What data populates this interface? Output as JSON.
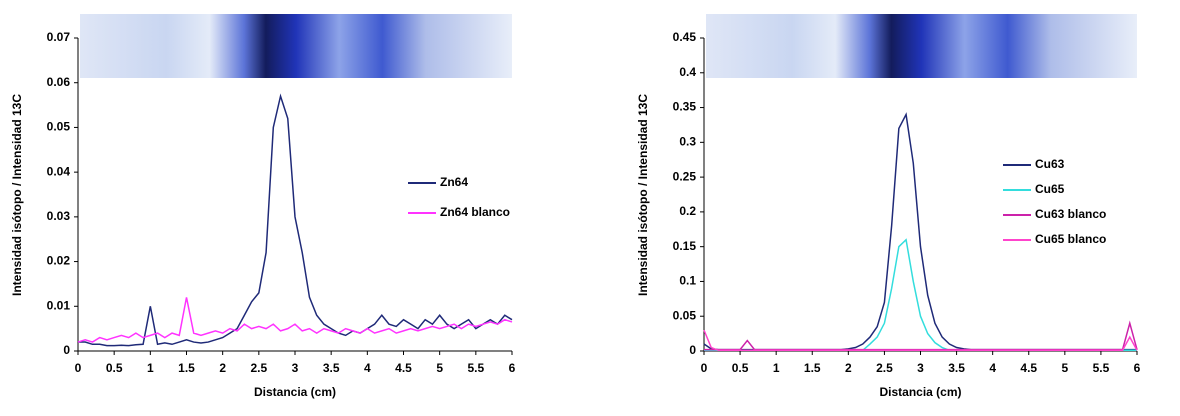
{
  "chart_data": [
    {
      "type": "line",
      "ylabel": "Intensidad isótopo / Intensidad 13C",
      "xlabel": "Distancia (cm)",
      "x": [
        0,
        0.1,
        0.2,
        0.3,
        0.4,
        0.5,
        0.6,
        0.7,
        0.8,
        0.9,
        1,
        1.1,
        1.2,
        1.3,
        1.4,
        1.5,
        1.6,
        1.7,
        1.8,
        1.9,
        2,
        2.1,
        2.2,
        2.3,
        2.4,
        2.5,
        2.6,
        2.7,
        2.8,
        2.9,
        3,
        3.1,
        3.2,
        3.3,
        3.4,
        3.5,
        3.6,
        3.7,
        3.8,
        3.9,
        4,
        4.1,
        4.2,
        4.3,
        4.4,
        4.5,
        4.6,
        4.7,
        4.8,
        4.9,
        5,
        5.1,
        5.2,
        5.3,
        5.4,
        5.5,
        5.6,
        5.7,
        5.8,
        5.9,
        6
      ],
      "xlim": [
        0,
        6
      ],
      "xticks": [
        0,
        0.5,
        1,
        1.5,
        2,
        2.5,
        3,
        3.5,
        4,
        4.5,
        5,
        5.5,
        6
      ],
      "ylim": [
        0,
        0.07
      ],
      "yticks": [
        0,
        0.01,
        0.02,
        0.03,
        0.04,
        0.05,
        0.06,
        0.07
      ],
      "legend": "right",
      "series": [
        {
          "name": "Zn64",
          "color": "#1f2a78",
          "values": [
            0.002,
            0.002,
            0.0015,
            0.0015,
            0.0012,
            0.0012,
            0.0013,
            0.0012,
            0.0014,
            0.0015,
            0.01,
            0.0015,
            0.0018,
            0.0015,
            0.002,
            0.0025,
            0.002,
            0.0018,
            0.002,
            0.0025,
            0.003,
            0.004,
            0.005,
            0.008,
            0.011,
            0.013,
            0.022,
            0.05,
            0.057,
            0.052,
            0.03,
            0.022,
            0.012,
            0.008,
            0.006,
            0.005,
            0.004,
            0.0035,
            0.0045,
            0.004,
            0.005,
            0.006,
            0.008,
            0.006,
            0.0055,
            0.007,
            0.006,
            0.005,
            0.007,
            0.006,
            0.008,
            0.006,
            0.005,
            0.006,
            0.007,
            0.005,
            0.006,
            0.007,
            0.006,
            0.008,
            0.007
          ]
        },
        {
          "name": "Zn64 blanco",
          "color": "#ff33ff",
          "values": [
            0.002,
            0.0025,
            0.002,
            0.003,
            0.0025,
            0.003,
            0.0035,
            0.003,
            0.004,
            0.003,
            0.0035,
            0.004,
            0.003,
            0.004,
            0.0035,
            0.012,
            0.004,
            0.0035,
            0.004,
            0.0045,
            0.004,
            0.005,
            0.0045,
            0.006,
            0.005,
            0.0055,
            0.005,
            0.006,
            0.0045,
            0.005,
            0.006,
            0.0045,
            0.005,
            0.004,
            0.005,
            0.0045,
            0.004,
            0.005,
            0.0045,
            0.004,
            0.005,
            0.004,
            0.0045,
            0.005,
            0.004,
            0.0045,
            0.005,
            0.0045,
            0.005,
            0.0055,
            0.005,
            0.0055,
            0.006,
            0.005,
            0.006,
            0.0055,
            0.006,
            0.0065,
            0.006,
            0.007,
            0.0065
          ]
        }
      ]
    },
    {
      "type": "line",
      "ylabel": "Intensidad isótopo / Intensidad 13C",
      "xlabel": "Distancia (cm)",
      "x": [
        0,
        0.1,
        0.2,
        0.3,
        0.4,
        0.5,
        0.6,
        0.7,
        0.8,
        0.9,
        1,
        1.1,
        1.2,
        1.3,
        1.4,
        1.5,
        1.6,
        1.7,
        1.8,
        1.9,
        2,
        2.1,
        2.2,
        2.3,
        2.4,
        2.5,
        2.6,
        2.7,
        2.8,
        2.9,
        3,
        3.1,
        3.2,
        3.3,
        3.4,
        3.5,
        3.6,
        3.7,
        3.8,
        3.9,
        4,
        4.1,
        4.2,
        4.3,
        4.4,
        4.5,
        4.6,
        4.7,
        4.8,
        4.9,
        5,
        5.1,
        5.2,
        5.3,
        5.4,
        5.5,
        5.6,
        5.7,
        5.8,
        5.9,
        6
      ],
      "xlim": [
        0,
        6
      ],
      "xticks": [
        0,
        0.5,
        1,
        1.5,
        2,
        2.5,
        3,
        3.5,
        4,
        4.5,
        5,
        5.5,
        6
      ],
      "ylim": [
        0,
        0.45
      ],
      "yticks": [
        0,
        0.05,
        0.1,
        0.15,
        0.2,
        0.25,
        0.3,
        0.35,
        0.4,
        0.45
      ],
      "legend": "right",
      "series": [
        {
          "name": "Cu63",
          "color": "#1f2a78",
          "values": [
            0.01,
            0.003,
            0.002,
            0.002,
            0.002,
            0.002,
            0.002,
            0.002,
            0.002,
            0.002,
            0.002,
            0.002,
            0.002,
            0.002,
            0.002,
            0.002,
            0.002,
            0.002,
            0.002,
            0.002,
            0.003,
            0.005,
            0.01,
            0.02,
            0.035,
            0.07,
            0.18,
            0.32,
            0.34,
            0.27,
            0.15,
            0.08,
            0.04,
            0.02,
            0.01,
            0.005,
            0.003,
            0.002,
            0.002,
            0.002,
            0.002,
            0.002,
            0.002,
            0.002,
            0.002,
            0.002,
            0.002,
            0.002,
            0.002,
            0.002,
            0.002,
            0.002,
            0.002,
            0.002,
            0.002,
            0.002,
            0.002,
            0.002,
            0.002,
            0.002,
            0.002
          ]
        },
        {
          "name": "Cu65",
          "color": "#33dddd",
          "values": [
            0.001,
            0.001,
            0.001,
            0.001,
            0.001,
            0.001,
            0.001,
            0.001,
            0.001,
            0.001,
            0.001,
            0.001,
            0.001,
            0.001,
            0.001,
            0.001,
            0.001,
            0.001,
            0.001,
            0.001,
            0.001,
            0.001,
            0.001,
            0.01,
            0.02,
            0.04,
            0.09,
            0.15,
            0.16,
            0.1,
            0.05,
            0.025,
            0.012,
            0.005,
            0.001,
            0.001,
            0.001,
            0.001,
            0.001,
            0.001,
            0.001,
            0.001,
            0.001,
            0.001,
            0.001,
            0.001,
            0.001,
            0.001,
            0.001,
            0.001,
            0.001,
            0.001,
            0.001,
            0.001,
            0.001,
            0.001,
            0.001,
            0.001,
            0.001,
            0.001,
            0.001
          ]
        },
        {
          "name": "Cu63 blanco",
          "color": "#cc22aa",
          "values": [
            0.002,
            0.002,
            0.002,
            0.002,
            0.002,
            0.002,
            0.015,
            0.002,
            0.002,
            0.002,
            0.002,
            0.002,
            0.002,
            0.002,
            0.002,
            0.002,
            0.002,
            0.002,
            0.002,
            0.002,
            0.002,
            0.002,
            0.002,
            0.002,
            0.002,
            0.002,
            0.002,
            0.002,
            0.002,
            0.002,
            0.002,
            0.002,
            0.002,
            0.002,
            0.002,
            0.002,
            0.002,
            0.002,
            0.002,
            0.002,
            0.002,
            0.002,
            0.002,
            0.002,
            0.002,
            0.002,
            0.002,
            0.002,
            0.002,
            0.002,
            0.002,
            0.002,
            0.002,
            0.002,
            0.002,
            0.002,
            0.002,
            0.002,
            0.002,
            0.04,
            0.002
          ]
        },
        {
          "name": "Cu65 blanco",
          "color": "#ff44cc",
          "values": [
            0.03,
            0.005,
            0.001,
            0.001,
            0.001,
            0.001,
            0.001,
            0.001,
            0.001,
            0.001,
            0.001,
            0.001,
            0.001,
            0.001,
            0.001,
            0.001,
            0.001,
            0.001,
            0.001,
            0.001,
            0.001,
            0.001,
            0.001,
            0.001,
            0.001,
            0.001,
            0.001,
            0.001,
            0.001,
            0.001,
            0.001,
            0.001,
            0.001,
            0.001,
            0.001,
            0.001,
            0.001,
            0.001,
            0.001,
            0.001,
            0.001,
            0.001,
            0.001,
            0.001,
            0.001,
            0.001,
            0.001,
            0.001,
            0.001,
            0.001,
            0.001,
            0.001,
            0.001,
            0.001,
            0.001,
            0.001,
            0.001,
            0.001,
            0.001,
            0.02,
            0.001
          ]
        }
      ]
    }
  ]
}
